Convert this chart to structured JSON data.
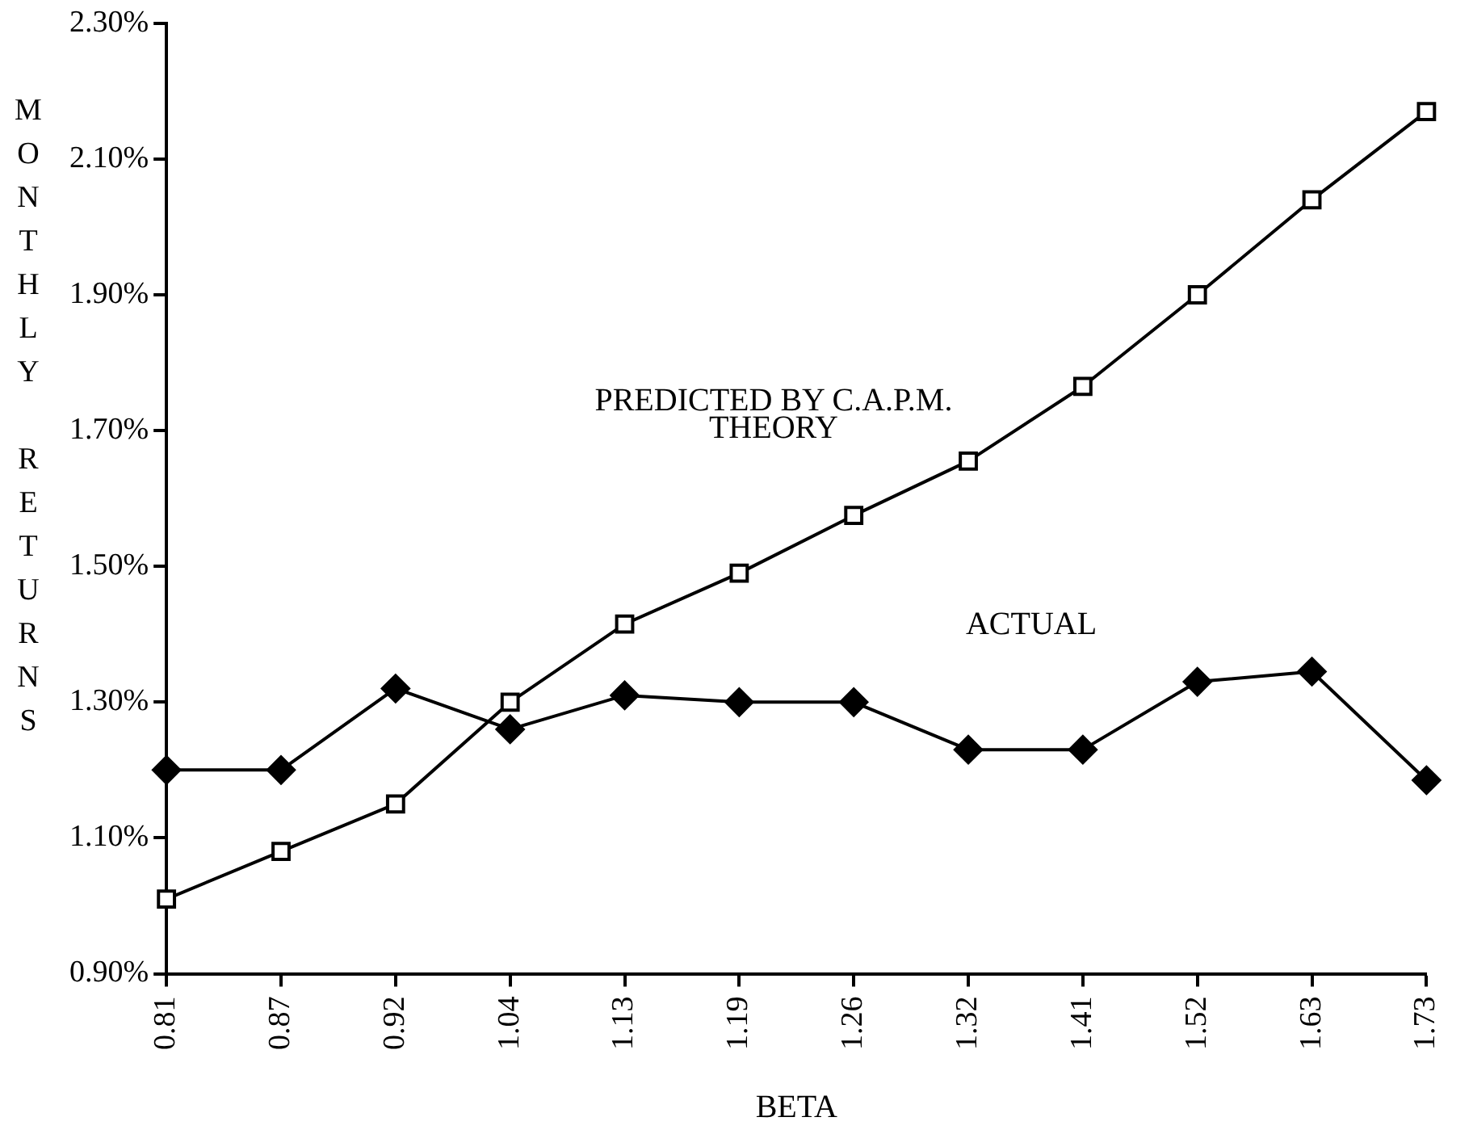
{
  "chart_data": {
    "type": "line",
    "xlabel": "BETA",
    "ylabel": "MONTHLY RETURNS",
    "categories": [
      "0.81",
      "0.87",
      "0.92",
      "1.04",
      "1.13",
      "1.19",
      "1.26",
      "1.32",
      "1.41",
      "1.52",
      "1.63",
      "1.73"
    ],
    "series": [
      {
        "name": "ACTUAL",
        "color": "#000000",
        "marker": "diamond",
        "values": [
          1.2,
          1.2,
          1.32,
          1.26,
          1.31,
          1.3,
          1.3,
          1.23,
          1.23,
          1.33,
          1.345,
          1.185
        ]
      },
      {
        "name": "PREDICTED BY C.A.P.M. THEORY",
        "color": "#000000",
        "marker": "square",
        "values": [
          1.01,
          1.08,
          1.15,
          1.3,
          1.415,
          1.49,
          1.575,
          1.655,
          1.765,
          1.9,
          2.04,
          2.17
        ]
      }
    ],
    "ylim": [
      0.9,
      2.3
    ],
    "yticks": [
      {
        "value": 0.9,
        "label": "0.90%"
      },
      {
        "value": 1.1,
        "label": "1.10%"
      },
      {
        "value": 1.3,
        "label": "1.30%"
      },
      {
        "value": 1.5,
        "label": "1.50%"
      },
      {
        "value": 1.7,
        "label": "1.70%"
      },
      {
        "value": 1.9,
        "label": "1.90%"
      },
      {
        "value": 2.1,
        "label": "2.10%"
      },
      {
        "value": 2.3,
        "label": "2.30%"
      }
    ],
    "grid": false,
    "legend": false,
    "line_style": "solid"
  }
}
